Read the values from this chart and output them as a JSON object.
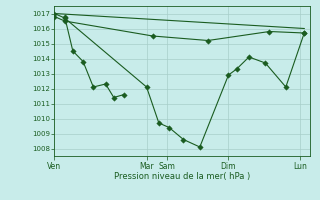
{
  "background_color": "#c8ecea",
  "grid_color": "#a8ceca",
  "line_color": "#1a5c20",
  "xlabel": "Pression niveau de la mer( hPa )",
  "ylim": [
    1007.5,
    1017.5
  ],
  "yticks": [
    1008,
    1009,
    1010,
    1011,
    1012,
    1013,
    1014,
    1015,
    1016,
    1017
  ],
  "xtick_labels": [
    "Ven",
    "Mar",
    "Sam",
    "Dim",
    "Lun"
  ],
  "xtick_positions": [
    0,
    4.5,
    5.5,
    8.5,
    12
  ],
  "xlim": [
    0,
    12.5
  ],
  "series_flat_top": {
    "x": [
      0,
      12.2
    ],
    "y": [
      1017.0,
      1016.0
    ]
  },
  "series_flat_mid": {
    "x": [
      0,
      0.5,
      4.8,
      7.5,
      10.5,
      12.2
    ],
    "y": [
      1016.8,
      1016.5,
      1015.5,
      1015.2,
      1015.8,
      1015.7
    ]
  },
  "series_short_drop": {
    "x": [
      0.5,
      0.9,
      1.4,
      1.9,
      2.5,
      2.9,
      3.4
    ],
    "y": [
      1016.8,
      1014.5,
      1013.8,
      1012.1,
      1012.3,
      1011.4,
      1011.6
    ]
  },
  "series_main_deep": {
    "x": [
      0,
      0.5,
      4.5,
      5.1,
      5.6,
      6.3,
      7.1,
      8.5,
      8.9,
      9.5,
      10.3,
      11.3,
      12.2
    ],
    "y": [
      1017.0,
      1016.7,
      1012.1,
      1009.7,
      1009.4,
      1008.6,
      1008.1,
      1012.9,
      1013.3,
      1014.1,
      1013.7,
      1012.1,
      1015.7
    ]
  }
}
